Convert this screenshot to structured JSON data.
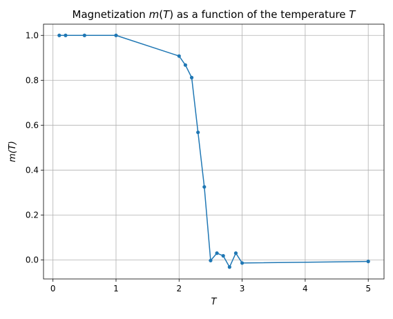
{
  "chart_data": {
    "type": "line",
    "title_parts": [
      {
        "text": "Magnetization ",
        "italic": false
      },
      {
        "text": "m",
        "italic": true
      },
      {
        "text": "(",
        "italic": false
      },
      {
        "text": "T",
        "italic": true
      },
      {
        "text": ") as a function of the temperature ",
        "italic": false
      },
      {
        "text": "T",
        "italic": true
      }
    ],
    "xlabel": "T",
    "ylabel": "m(T)",
    "xlim": [
      -0.15,
      5.25
    ],
    "ylim": [
      -0.085,
      1.05
    ],
    "xticks": [
      0,
      1,
      2,
      3,
      4,
      5
    ],
    "xtick_labels": [
      "0",
      "1",
      "2",
      "3",
      "4",
      "5"
    ],
    "yticks": [
      0.0,
      0.2,
      0.4,
      0.6,
      0.8,
      1.0
    ],
    "ytick_labels": [
      "0.0",
      "0.2",
      "0.4",
      "0.6",
      "0.8",
      "1.0"
    ],
    "grid": true,
    "series": [
      {
        "color": "#1f77b4",
        "marker": "dot",
        "x": [
          0.1,
          0.2,
          0.5,
          1.0,
          2.0,
          2.1,
          2.2,
          2.3,
          2.4,
          2.5,
          2.6,
          2.7,
          2.8,
          2.9,
          3.0,
          5.0
        ],
        "y": [
          1.0,
          1.0,
          1.0,
          1.0,
          0.908,
          0.868,
          0.812,
          0.568,
          0.325,
          -0.003,
          0.03,
          0.018,
          -0.032,
          0.03,
          -0.014,
          -0.007
        ]
      }
    ]
  }
}
